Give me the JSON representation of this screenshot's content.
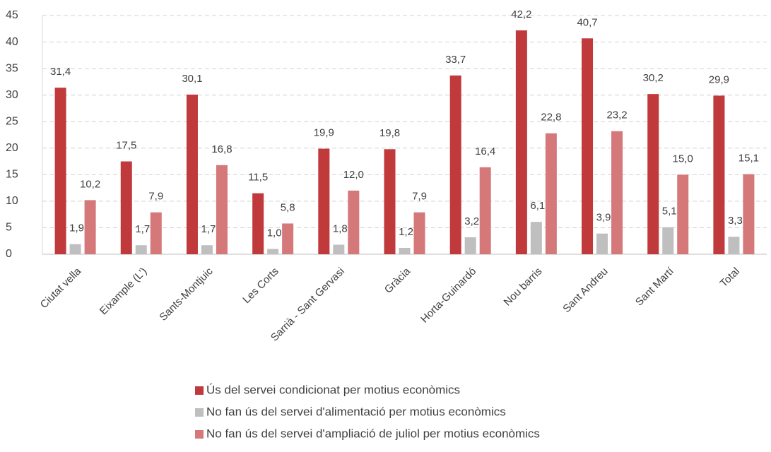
{
  "chart_data": {
    "type": "bar",
    "categories": [
      "Ciutat vella",
      "Eixample (L')",
      "Sants-Montjuic",
      "Les Corts",
      "Sarrià - Sant Gervasi",
      "Gràcia",
      "Horta-Guinardó",
      "Nou barris",
      "Sant Andreu",
      "Sant Martí",
      "Total"
    ],
    "series": [
      {
        "name": "Ús del servei condicionat per motius econòmics",
        "color": "#c0393b",
        "values": [
          31.4,
          17.5,
          30.1,
          11.5,
          19.9,
          19.8,
          33.7,
          42.2,
          40.7,
          30.2,
          29.9
        ],
        "value_labels": [
          "31,4",
          "17,5",
          "30,1",
          "11,5",
          "19,9",
          "19,8",
          "33,7",
          "42,2",
          "40,7",
          "30,2",
          "29,9"
        ]
      },
      {
        "name": "No fan ús del servei d'alimentació per motius econòmics",
        "color": "#bfbfbf",
        "values": [
          1.9,
          1.7,
          1.7,
          1.0,
          1.8,
          1.2,
          3.2,
          6.1,
          3.9,
          5.1,
          3.3
        ],
        "value_labels": [
          "1,9",
          "1,7",
          "1,7",
          "1,0",
          "1,8",
          "1,2",
          "3,2",
          "6,1",
          "3,9",
          "5,1",
          "3,3"
        ]
      },
      {
        "name": "No fan ús del servei d'ampliació de juliol per motius econòmics",
        "color": "#d5787a",
        "values": [
          10.2,
          7.9,
          16.8,
          5.8,
          12.0,
          7.9,
          16.4,
          22.8,
          23.2,
          15.0,
          15.1
        ],
        "value_labels": [
          "10,2",
          "7,9",
          "16,8",
          "5,8",
          "12,0",
          "7,9",
          "16,4",
          "22,8",
          "23,2",
          "15,0",
          "15,1"
        ]
      }
    ],
    "ylim": [
      0,
      45
    ],
    "yticks": [
      0,
      5,
      10,
      15,
      20,
      25,
      30,
      35,
      40,
      45
    ],
    "grid": true,
    "legend": "bottom"
  }
}
